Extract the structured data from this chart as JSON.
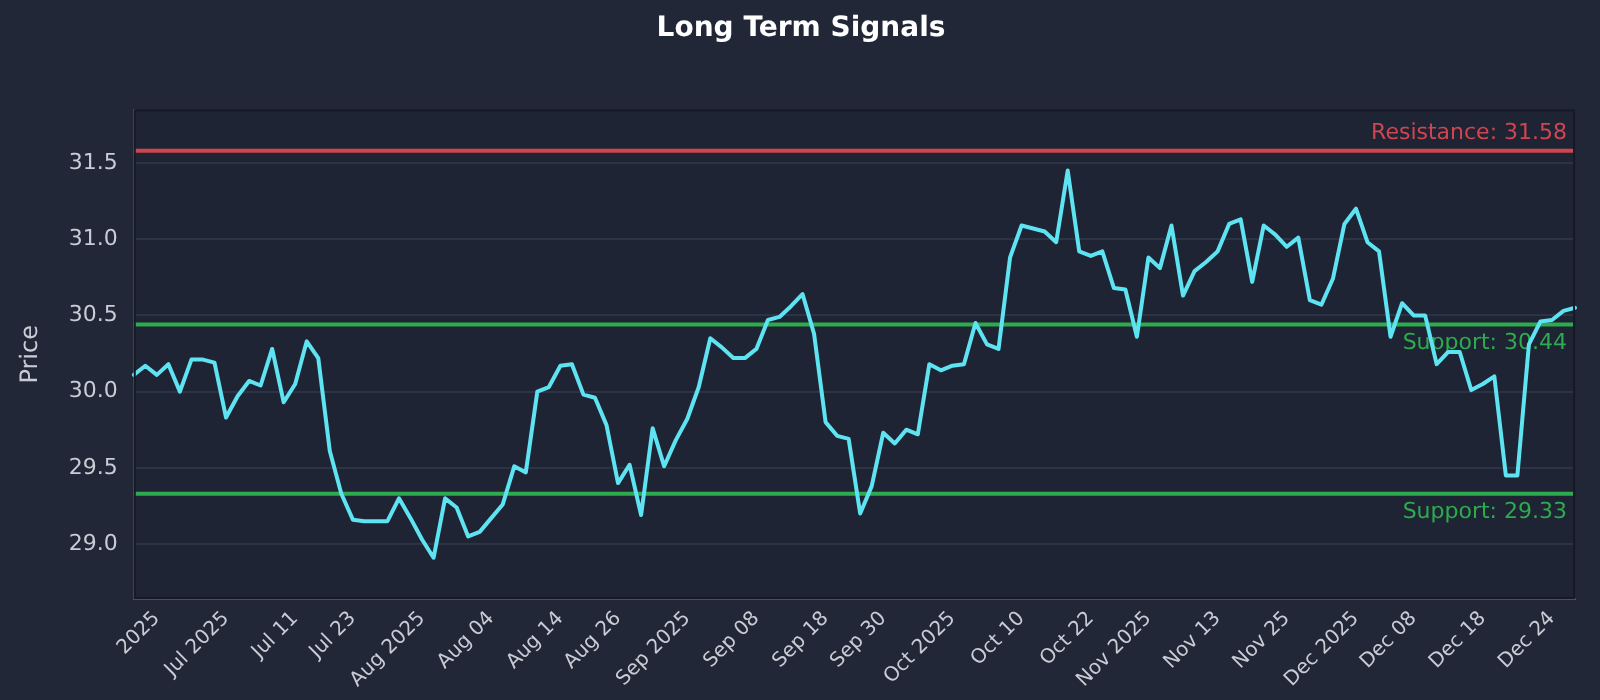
{
  "chart_data": {
    "type": "line",
    "title": "Long Term Signals",
    "ylabel": "Price",
    "categories": [
      null,
      null,
      "2025",
      null,
      null,
      null,
      null,
      null,
      "Jul 2025",
      null,
      null,
      null,
      null,
      null,
      "Jul 11",
      null,
      null,
      null,
      null,
      "Jul 23",
      null,
      null,
      null,
      null,
      null,
      "Aug 2025",
      null,
      null,
      null,
      null,
      null,
      "Aug 04",
      null,
      null,
      null,
      null,
      null,
      "Aug 14",
      null,
      null,
      null,
      null,
      "Aug 26",
      null,
      null,
      null,
      null,
      null,
      "Sep 2025",
      null,
      null,
      null,
      null,
      null,
      "Sep 08",
      null,
      null,
      null,
      null,
      null,
      "Sep 18",
      null,
      null,
      null,
      null,
      "Sep 30",
      null,
      null,
      null,
      null,
      null,
      "Oct 2025",
      null,
      null,
      null,
      null,
      null,
      "Oct 10",
      null,
      null,
      null,
      null,
      null,
      "Oct 22",
      null,
      null,
      null,
      null,
      "Nov 2025",
      null,
      null,
      null,
      null,
      null,
      "Nov 13",
      null,
      null,
      null,
      null,
      null,
      "Nov 25",
      null,
      null,
      null,
      null,
      null,
      "Dec 2025",
      null,
      null,
      null,
      null,
      "Dec 08",
      null,
      null,
      null,
      null,
      null,
      "Dec 18",
      null,
      null,
      null,
      null,
      null,
      "Dec 24",
      null,
      null
    ],
    "series": [
      {
        "color": "#5ee3f2",
        "values": [
          30.11,
          30.17,
          30.11,
          30.18,
          30.0,
          30.21,
          30.21,
          30.19,
          29.83,
          29.97,
          30.07,
          30.04,
          30.28,
          29.93,
          30.05,
          30.33,
          30.22,
          29.61,
          29.33,
          29.16,
          29.15,
          29.15,
          29.15,
          29.3,
          29.17,
          29.03,
          28.91,
          29.3,
          29.24,
          29.05,
          29.08,
          29.17,
          29.26,
          29.51,
          29.47,
          30.0,
          30.03,
          30.17,
          30.18,
          29.98,
          29.96,
          29.78,
          29.4,
          29.52,
          29.19,
          29.76,
          29.51,
          29.68,
          29.82,
          30.03,
          30.35,
          30.29,
          30.22,
          30.22,
          30.28,
          30.47,
          30.49,
          30.56,
          30.64,
          30.38,
          29.8,
          29.71,
          29.69,
          29.2,
          29.38,
          29.73,
          29.66,
          29.75,
          29.72,
          30.18,
          30.14,
          30.17,
          30.18,
          30.45,
          30.31,
          30.28,
          30.88,
          31.09,
          31.07,
          31.05,
          30.98,
          31.45,
          30.92,
          30.89,
          30.92,
          30.68,
          30.67,
          30.36,
          30.88,
          30.81,
          31.09,
          30.63,
          30.79,
          30.85,
          30.92,
          31.1,
          31.13,
          30.72,
          31.09,
          31.03,
          30.95,
          31.01,
          30.6,
          30.57,
          30.74,
          31.1,
          31.2,
          30.98,
          30.92,
          30.36,
          30.58,
          30.5,
          30.5,
          30.18,
          30.26,
          30.26,
          30.01,
          30.05,
          30.1,
          29.45,
          29.45,
          30.31,
          30.46,
          30.47,
          30.53,
          30.55
        ]
      }
    ],
    "ylim": [
      28.64,
      31.85
    ],
    "yticks": [
      {
        "value": 29,
        "label": "29.0"
      },
      29.5,
      {
        "value": 30,
        "label": "30.0"
      },
      30.5,
      {
        "value": 31,
        "label": "31.0"
      },
      31.5
    ],
    "ref_lines": [
      {
        "axis": "y",
        "value": 31.58,
        "label": "Resistance: 31.58",
        "color": "#d0454f"
      },
      {
        "axis": "y",
        "value": 30.44,
        "label": "Support: 30.44",
        "color": "#2eaa4f"
      },
      {
        "axis": "y",
        "value": 29.33,
        "label": "Support: 29.33",
        "color": "#2eaa4f"
      }
    ],
    "grid": "y",
    "legend": false,
    "marker": "none",
    "line_style": "solid"
  }
}
